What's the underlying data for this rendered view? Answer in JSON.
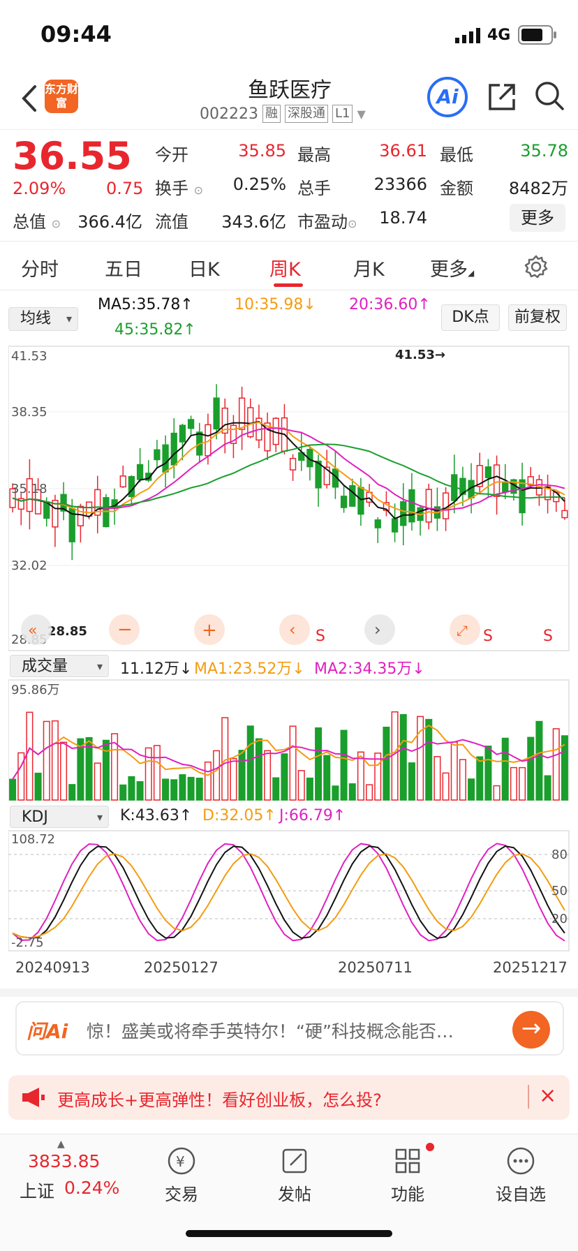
{
  "status": {
    "time": "09:44",
    "network": "4G"
  },
  "header": {
    "logo_text": "东方财富",
    "stock_name": "鱼跃医疗",
    "stock_code": "002223",
    "tags": [
      "融",
      "深股通",
      "L1"
    ],
    "ai_label": "Ai"
  },
  "quote": {
    "price": "36.55",
    "change_pct": "2.09%",
    "change_amt": "0.75",
    "fields": [
      {
        "label": "今开",
        "value": "35.85",
        "color": "red"
      },
      {
        "label": "最高",
        "value": "36.61",
        "color": "red"
      },
      {
        "label": "最低",
        "value": "35.78",
        "color": "green"
      },
      {
        "label": "换手",
        "value": "0.25%",
        "color": "black"
      },
      {
        "label": "总手",
        "value": "23366",
        "color": "black"
      },
      {
        "label": "金额",
        "value": "8482万",
        "color": "black"
      },
      {
        "label": "总值",
        "value": "366.4亿",
        "color": "black"
      },
      {
        "label": "流值",
        "value": "343.6亿",
        "color": "black"
      },
      {
        "label": "市盈动",
        "value": "18.74",
        "color": "black"
      }
    ],
    "more_label": "更多"
  },
  "tabs": [
    "分时",
    "五日",
    "日K",
    "周K",
    "月K",
    "更多"
  ],
  "active_tab": "周K",
  "ma_bar": {
    "select_label": "均线",
    "ma5": "MA5:35.78↑",
    "ma10": "10:35.98↓",
    "ma20": "20:36.60↑",
    "ma45": "45:35.82↑",
    "dk_label": "DK点",
    "fq_label": "前复权"
  },
  "kline": {
    "y_top": "41.53",
    "y_2": "38.35",
    "y_3": "35.18",
    "y_4": "32.02",
    "y_bottom": "28.85",
    "max_label": "41.53→",
    "min_label": "28.85",
    "s_markers": [
      "S",
      "S",
      "S"
    ]
  },
  "volume_bar": {
    "select_label": "成交量",
    "vol": "11.12万↓",
    "ma1": "MA1:23.52万↓",
    "ma2": "MA2:34.35万↓",
    "y_top": "95.86万"
  },
  "kdj_bar": {
    "select_label": "KDJ",
    "k": "K:43.63↑",
    "d": "D:32.05↑",
    "j": "J:66.79↑",
    "y_top": "108.72",
    "y_bottom": "-2.75",
    "ref_80": "80",
    "ref_50": "50",
    "ref_20": "20"
  },
  "dates": [
    "20240913",
    "20250127",
    "20250711",
    "20251217"
  ],
  "ask_ai": {
    "logo": "问Ai",
    "text": "惊！盛美或将牵手英特尔！“硬”科技概念能否…"
  },
  "banner": {
    "text": "更高成长+更高弹性！看好创业板，怎么投?"
  },
  "bottom_nav": {
    "index_value": "3833.85",
    "index_name": "上证",
    "index_change": "0.24%",
    "items": [
      "交易",
      "发帖",
      "功能",
      "设自选"
    ]
  },
  "colors": {
    "up": "#e8262e",
    "down": "#1a9e2c",
    "ma5": "#111111",
    "ma10": "#f39c12",
    "ma20": "#e020c0",
    "ma45": "#1a9e2c",
    "brand": "#f26522"
  }
}
